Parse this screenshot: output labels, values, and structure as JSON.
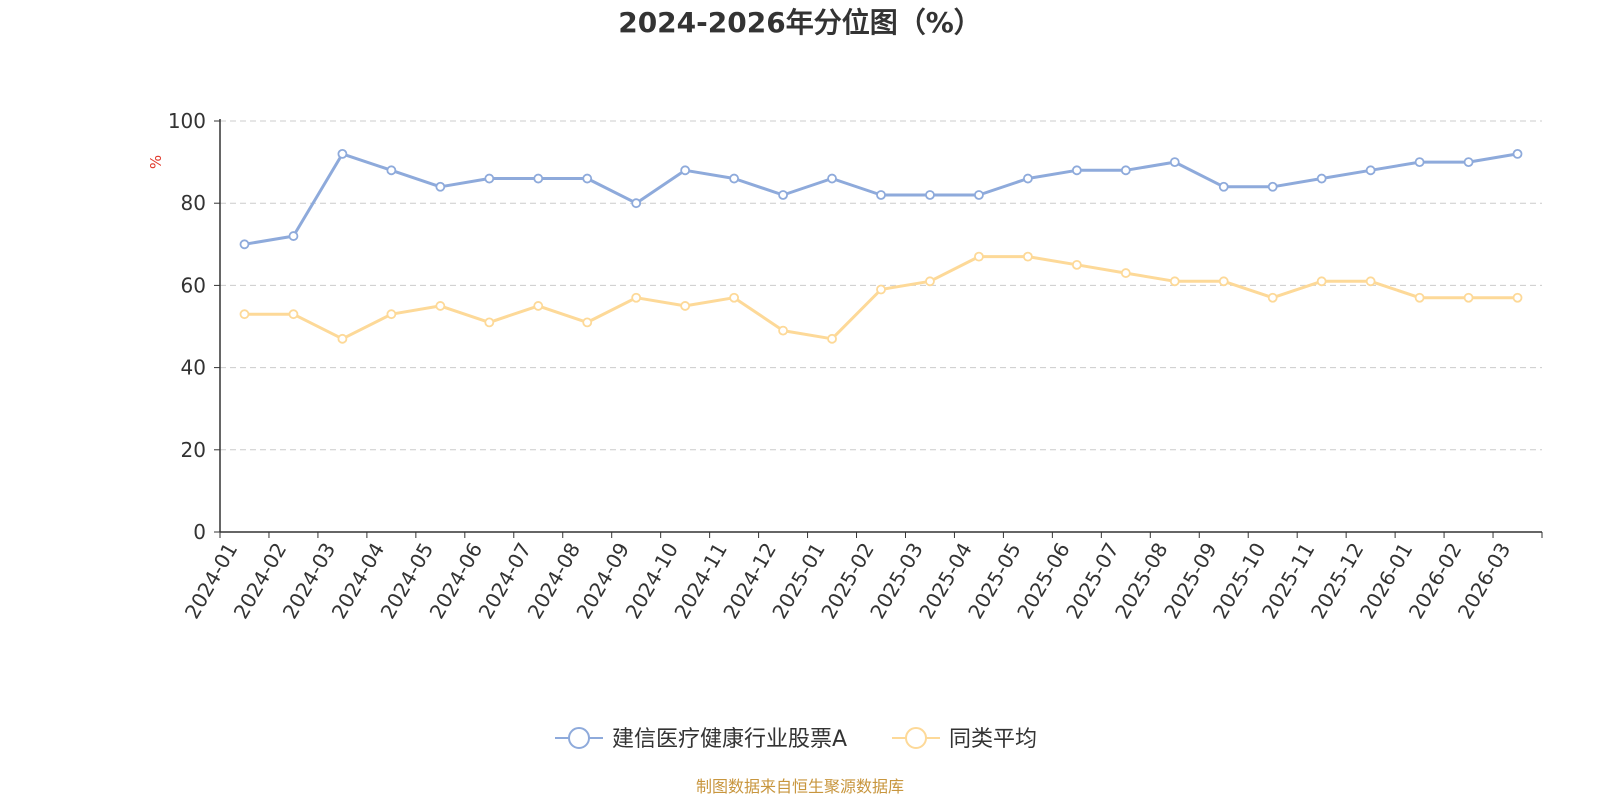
{
  "chart_data": {
    "type": "line",
    "title": "2024-2026年分位图（%）",
    "ylabel": "%",
    "ylim": [
      0,
      100
    ],
    "yticks": [
      0,
      20,
      40,
      60,
      80,
      100
    ],
    "grid": true,
    "legend_position": "bottom-center",
    "categories": [
      "2024-01",
      "2024-02",
      "2024-03",
      "2024-04",
      "2024-05",
      "2024-06",
      "2024-07",
      "2024-08",
      "2024-09",
      "2024-10",
      "2024-11",
      "2024-12",
      "2025-01",
      "2025-02",
      "2025-03",
      "2025-04",
      "2025-05",
      "2025-06",
      "2025-07",
      "2025-08",
      "2025-09",
      "2025-10",
      "2025-11",
      "2025-12",
      "2026-01",
      "2026-02",
      "2026-03"
    ],
    "series": [
      {
        "name": "建信医疗健康行业股票A",
        "color": "#8eaadb",
        "values": [
          70,
          72,
          92,
          88,
          84,
          86,
          86,
          86,
          80,
          88,
          86,
          82,
          86,
          82,
          82,
          82,
          86,
          88,
          88,
          90,
          84,
          84,
          86,
          88,
          90,
          90,
          92
        ]
      },
      {
        "name": "同类平均",
        "color": "#fdd998",
        "values": [
          53,
          53,
          47,
          53,
          55,
          51,
          55,
          51,
          57,
          55,
          57,
          49,
          47,
          59,
          61,
          67,
          67,
          65,
          63,
          61,
          61,
          57,
          61,
          61,
          57,
          57,
          57
        ]
      }
    ]
  },
  "source": "制图数据来自恒生聚源数据库",
  "colors": {
    "unit_label": "#e0392b",
    "source_text": "#c8963e",
    "axis": "#333333",
    "grid": "#cccccc"
  }
}
